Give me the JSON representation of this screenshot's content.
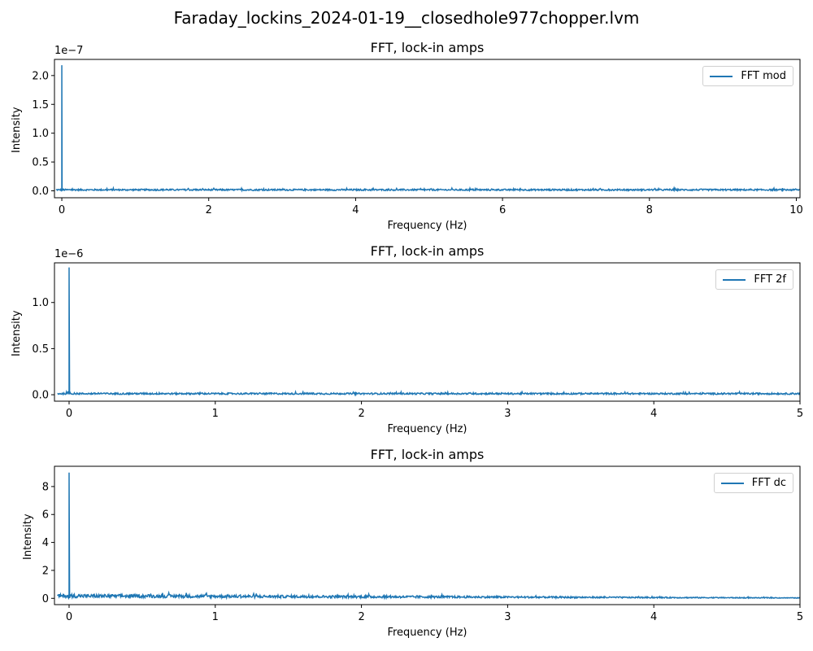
{
  "figure": {
    "title": "Faraday_lockins_2024-01-19__closedhole977chopper.lvm"
  },
  "colors": {
    "series": "#1f77b4",
    "axis": "#000000"
  },
  "chart_data": [
    {
      "type": "line",
      "title": "FFT, lock-in amps",
      "xlabel": "Frequency (Hz)",
      "ylabel": "Intensity",
      "y_offset_label": "1e−7",
      "y_multiplier": 1e-07,
      "xlim": [
        -0.1,
        10.05
      ],
      "ylim": [
        -0.12,
        2.28
      ],
      "xticks": [
        0,
        2,
        4,
        6,
        8,
        10
      ],
      "xtick_labels": [
        "0",
        "2",
        "4",
        "6",
        "8",
        "10"
      ],
      "yticks": [
        0.0,
        0.5,
        1.0,
        1.5,
        2.0
      ],
      "ytick_labels": [
        "0.0",
        "0.5",
        "1.0",
        "1.5",
        "2.0"
      ],
      "legend_position": "upper-right",
      "grid": false,
      "series": [
        {
          "name": "FFT mod",
          "peak_x": 0.0,
          "peak_y": 2.18,
          "noise_level": 0.03
        }
      ]
    },
    {
      "type": "line",
      "title": "FFT, lock-in amps",
      "xlabel": "Frequency (Hz)",
      "ylabel": "Intensity",
      "y_offset_label": "1e−6",
      "y_multiplier": 1e-06,
      "xlim": [
        -0.1,
        5.0
      ],
      "ylim": [
        -0.07,
        1.43
      ],
      "xticks": [
        0,
        1,
        2,
        3,
        4,
        5
      ],
      "xtick_labels": [
        "0",
        "1",
        "2",
        "3",
        "4",
        "5"
      ],
      "yticks": [
        0.0,
        0.5,
        1.0
      ],
      "ytick_labels": [
        "0.0",
        "0.5",
        "1.0"
      ],
      "legend_position": "upper-right",
      "grid": false,
      "series": [
        {
          "name": "FFT 2f",
          "peak_x": 0.0,
          "peak_y": 1.38,
          "noise_level": 0.02
        }
      ]
    },
    {
      "type": "line",
      "title": "FFT, lock-in amps",
      "xlabel": "Frequency (Hz)",
      "ylabel": "Intensity",
      "y_offset_label": "",
      "y_multiplier": 1,
      "xlim": [
        -0.1,
        5.0
      ],
      "ylim": [
        -0.45,
        9.45
      ],
      "xticks": [
        0,
        1,
        2,
        3,
        4,
        5
      ],
      "xtick_labels": [
        "0",
        "1",
        "2",
        "3",
        "4",
        "5"
      ],
      "yticks": [
        0,
        2,
        4,
        6,
        8
      ],
      "ytick_labels": [
        "0",
        "2",
        "4",
        "6",
        "8"
      ],
      "legend_position": "upper-right",
      "grid": false,
      "series": [
        {
          "name": "FFT dc",
          "peak_x": 0.0,
          "peak_y": 9.0,
          "noise_start": 0.3,
          "noise_end": 0.05
        }
      ]
    }
  ]
}
